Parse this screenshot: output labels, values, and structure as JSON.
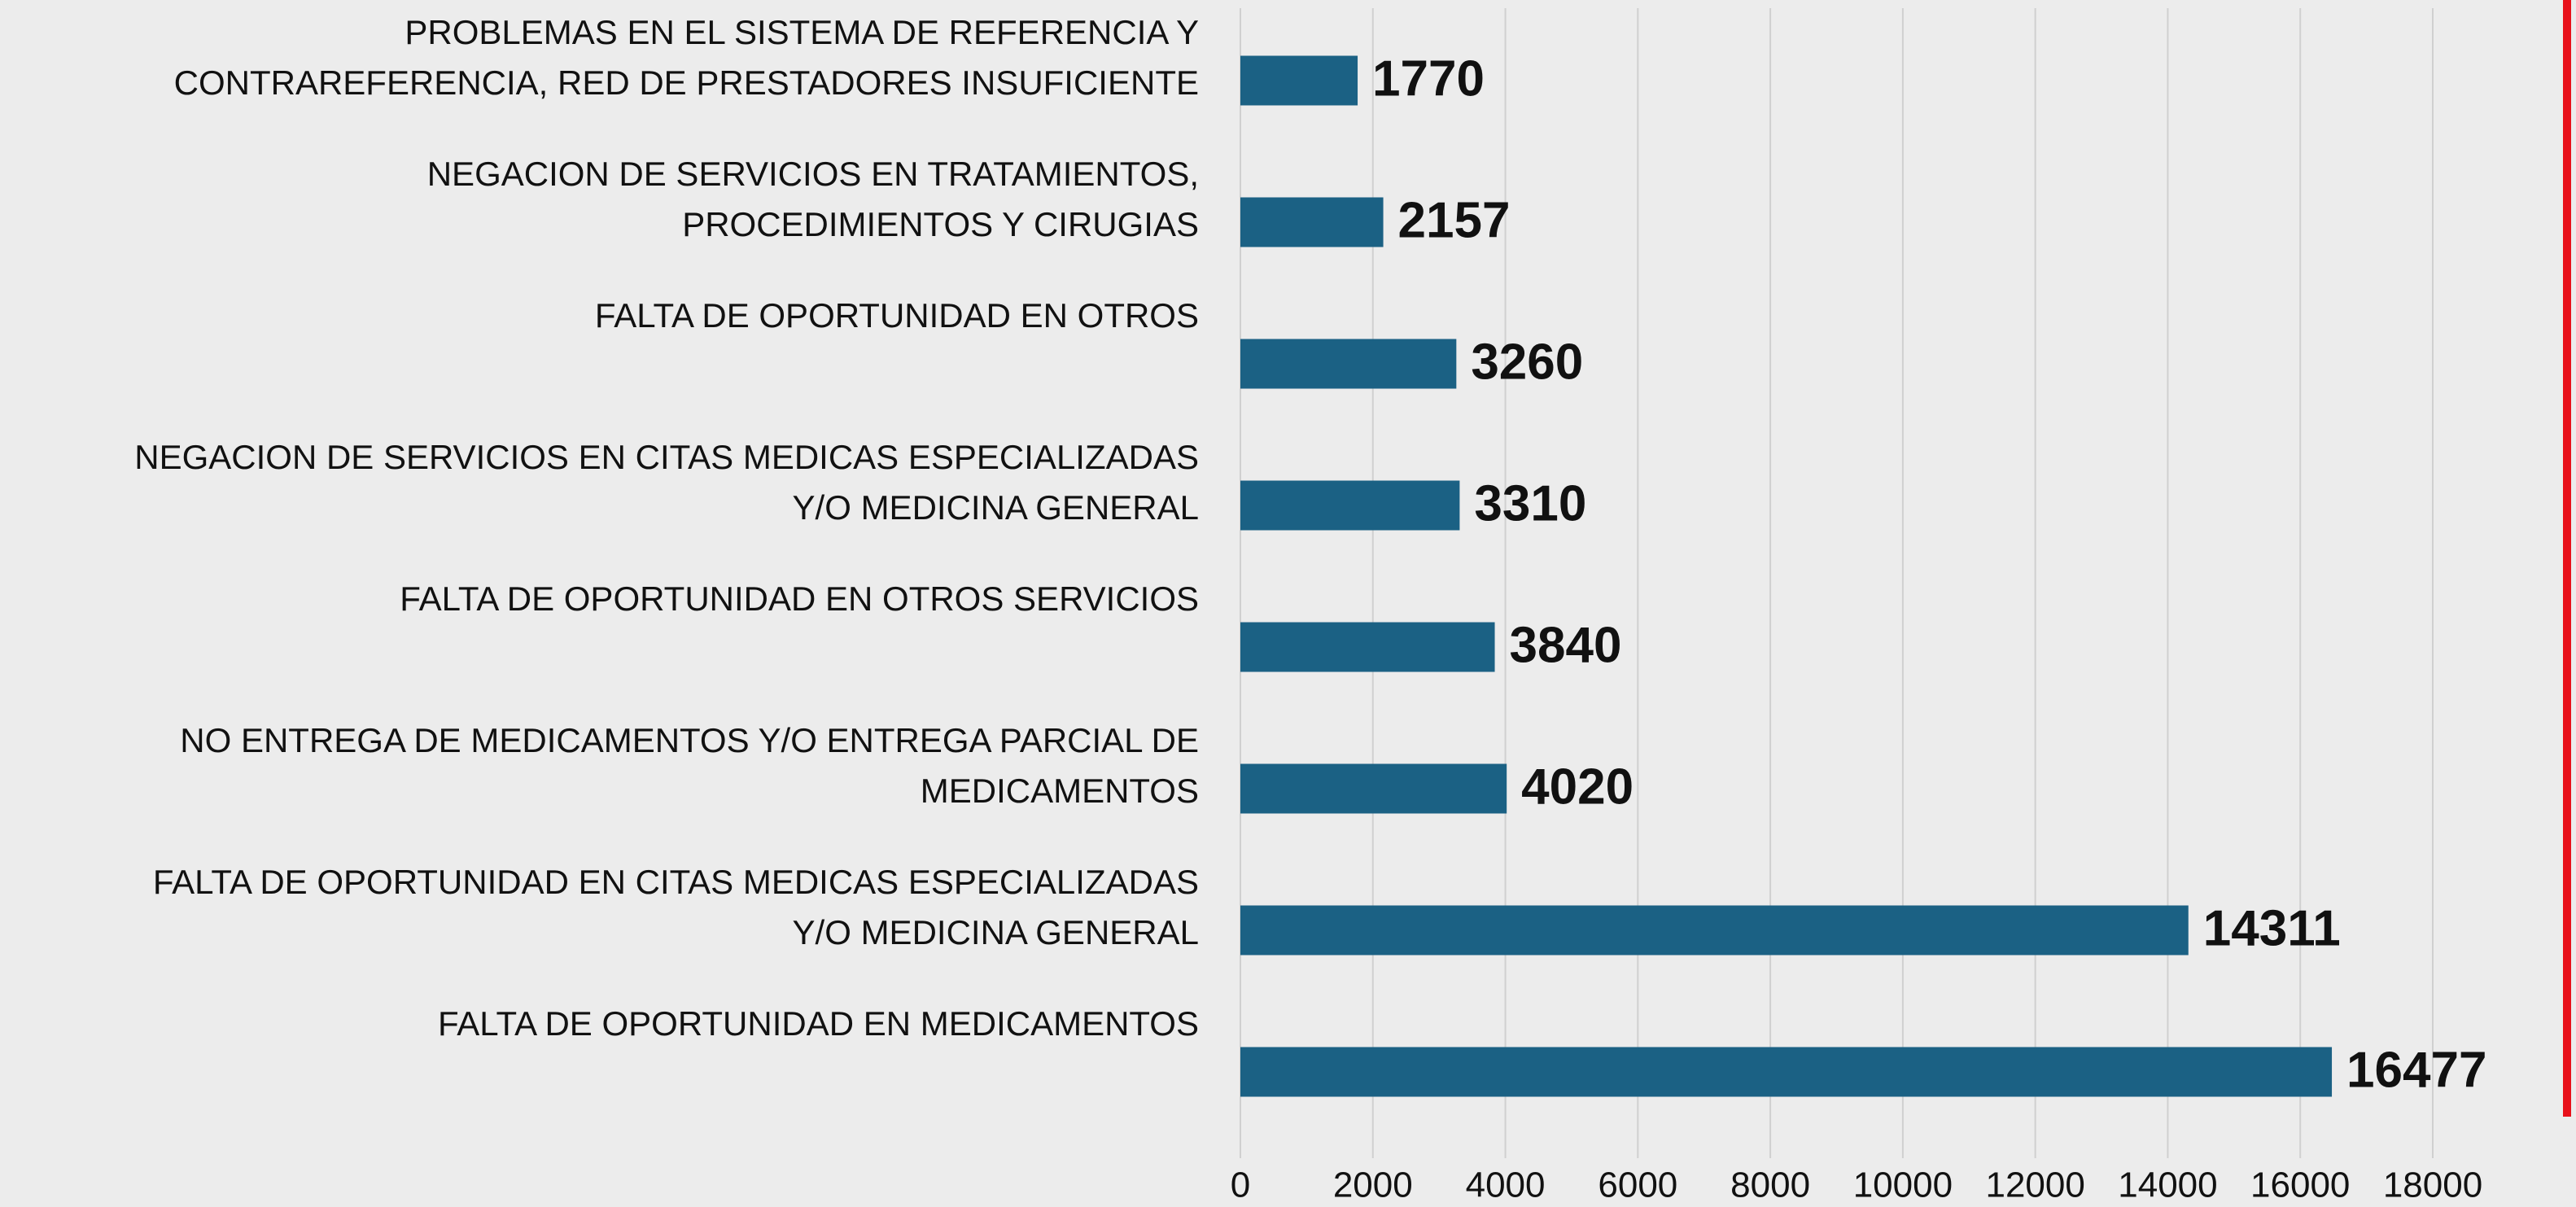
{
  "chart_data": {
    "type": "barh",
    "categories": [
      [
        "PROBLEMAS EN EL SISTEMA DE REFERENCIA Y",
        "CONTRAREFERENCIA, RED DE PRESTADORES INSUFICIENTE"
      ],
      [
        "NEGACION DE SERVICIOS EN TRATAMIENTOS,",
        "PROCEDIMIENTOS Y CIRUGIAS"
      ],
      [
        "FALTA DE OPORTUNIDAD EN OTROS"
      ],
      [
        "NEGACION DE SERVICIOS EN CITAS MEDICAS ESPECIALIZADAS",
        "Y/O MEDICINA GENERAL"
      ],
      [
        "FALTA DE OPORTUNIDAD EN OTROS SERVICIOS"
      ],
      [
        "NO ENTREGA DE MEDICAMENTOS Y/O ENTREGA PARCIAL DE",
        "MEDICAMENTOS"
      ],
      [
        "FALTA DE OPORTUNIDAD EN CITAS MEDICAS ESPECIALIZADAS",
        "Y/O MEDICINA GENERAL"
      ],
      [
        "FALTA DE OPORTUNIDAD EN MEDICAMENTOS"
      ]
    ],
    "values": [
      1770,
      2157,
      3260,
      3310,
      3840,
      4020,
      14311,
      16477
    ],
    "color": "#1b6184",
    "xlim": [
      0,
      18000
    ],
    "xticks": [
      0,
      2000,
      4000,
      6000,
      8000,
      10000,
      12000,
      14000,
      16000,
      18000
    ],
    "grid": true
  }
}
